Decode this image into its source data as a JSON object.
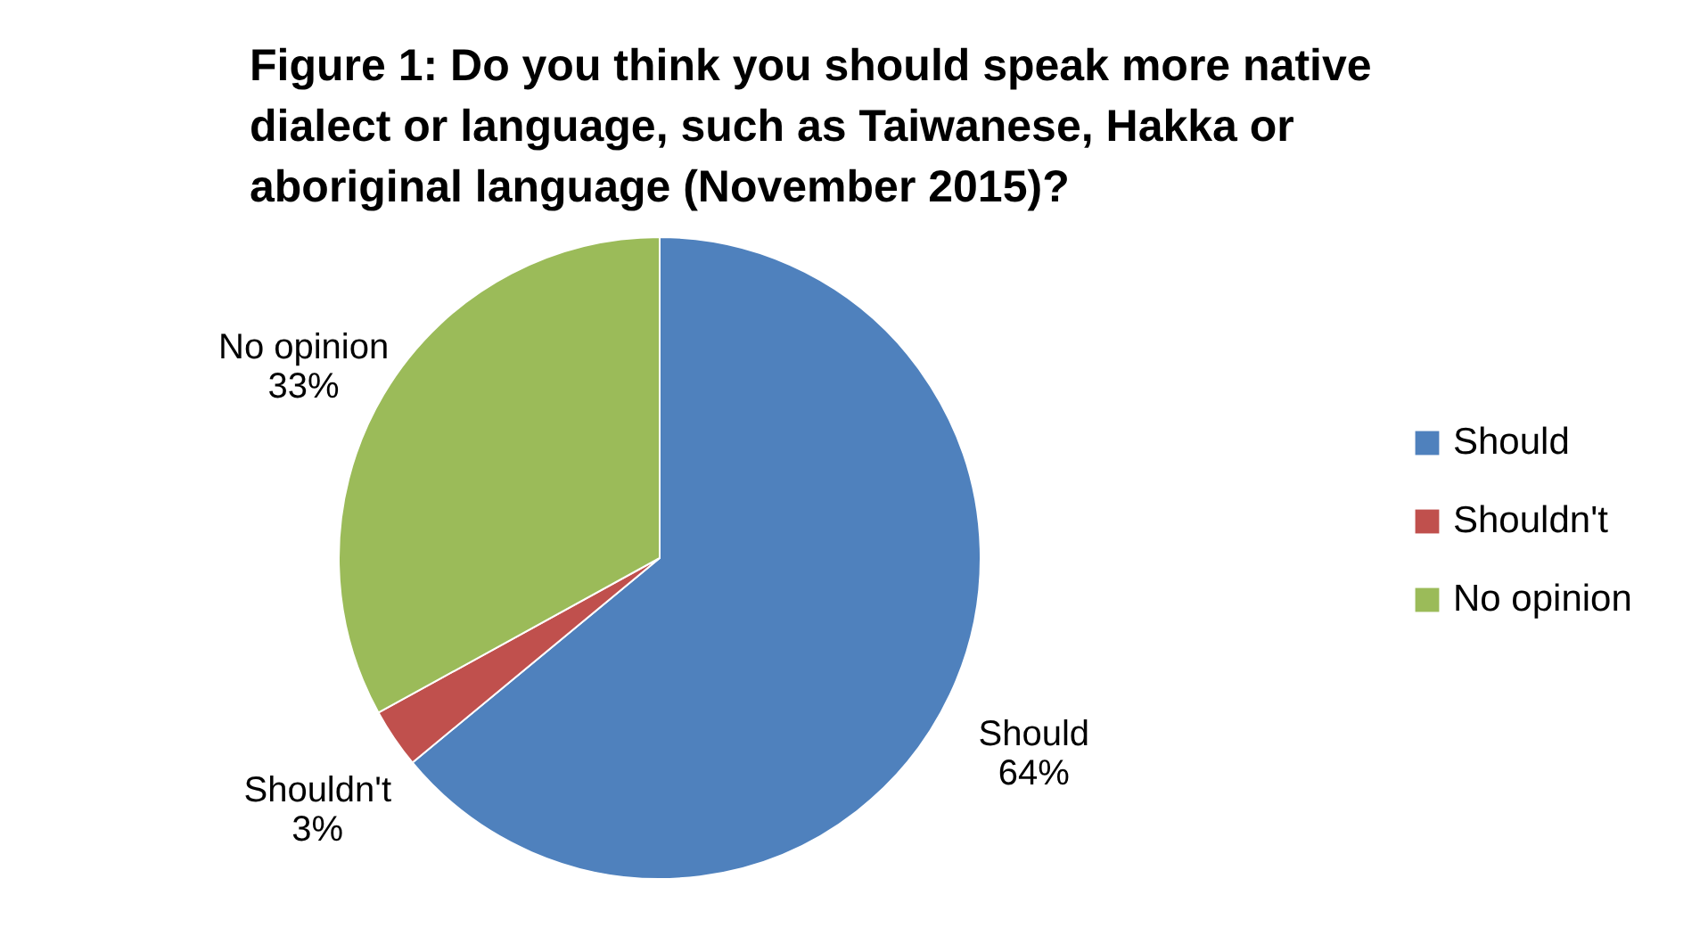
{
  "chart_data": {
    "type": "pie",
    "title": "Figure 1: Do you think you should speak more native dialect or language, such as Taiwanese, Hakka or aboriginal language (November 2015)?",
    "categories": [
      "Should",
      "Shouldn't",
      "No opinion"
    ],
    "values": [
      64,
      3,
      33
    ],
    "colors": [
      "#4f81bd",
      "#c0504d",
      "#9bbb59"
    ],
    "value_labels": [
      "64%",
      "3%",
      "33%"
    ],
    "legend": "right"
  }
}
